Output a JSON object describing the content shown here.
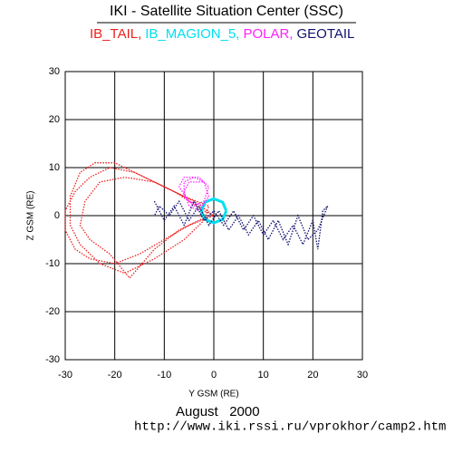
{
  "chart_data": {
    "type": "orbit",
    "title": "IKI - Satellite Situation Center (SSC)",
    "xlabel": "Y GSM (RE)",
    "ylabel": "Z GSM (RE)",
    "date": "August   2000",
    "url": "http://www.iki.rssi.ru/vprokhor/camp2.htm",
    "xlim": [
      -30,
      30
    ],
    "ylim": [
      -30,
      30
    ],
    "xticks": [
      -30,
      -20,
      -10,
      0,
      10,
      20,
      30
    ],
    "yticks": [
      -30,
      -20,
      -10,
      0,
      10,
      20,
      30
    ],
    "grid": true,
    "series": [
      {
        "name": "IB_TAIL,",
        "color": "#ee2020",
        "x": [
          0,
          -4,
          -10,
          -16,
          -21,
          -25,
          -28,
          -30,
          -30,
          -28,
          -25,
          -20,
          -15,
          -10,
          -5,
          0,
          -2,
          -8,
          -14,
          -20,
          -24,
          -27,
          -29,
          -29,
          -27,
          -23,
          -18,
          -12,
          -6,
          -2,
          -1,
          -6,
          -12,
          -18,
          -23,
          -26,
          -27,
          -25,
          -21,
          -17,
          -12,
          -7,
          -1
        ],
        "y": [
          0,
          3,
          6,
          9,
          10,
          8,
          5,
          1,
          -3,
          -7,
          -9,
          -10,
          -8,
          -5,
          -2,
          0,
          1,
          5,
          8,
          11,
          11,
          9,
          4,
          -2,
          -6,
          -10,
          -12,
          -9,
          -5,
          -1,
          2,
          4,
          7,
          8,
          7,
          3,
          -2,
          -5,
          -8,
          -13,
          -7,
          -3,
          0
        ]
      },
      {
        "name": "IB_MAGION_5,",
        "color": "#00e0f0",
        "x": [
          2.5,
          1.8,
          0,
          -1.8,
          -2.5,
          -1.8,
          0,
          1.8,
          2.5
        ],
        "y": [
          1,
          2.8,
          3.5,
          2.8,
          1,
          -0.8,
          -1.5,
          -0.8,
          1
        ]
      },
      {
        "name": "POLAR,",
        "color": "#ff20ff",
        "x": [
          -2,
          -5,
          -7,
          -6,
          -3,
          -1,
          -2,
          -4,
          -6,
          -6,
          -4,
          -2,
          -1,
          -3,
          -5,
          -6,
          -5,
          -2
        ],
        "y": [
          2,
          3,
          6,
          8,
          8,
          6,
          3,
          2,
          4,
          7,
          8,
          7,
          4,
          1,
          2,
          5,
          7,
          7
        ]
      },
      {
        "name": "GEOTAIL",
        "color": "#101070",
        "x": [
          -12,
          -10,
          -8,
          -6,
          -4,
          -2,
          0,
          2,
          4,
          6,
          8,
          10,
          12,
          14,
          16,
          18,
          20,
          21,
          22,
          23,
          21,
          19,
          17,
          15,
          13,
          11,
          9,
          7,
          5,
          3,
          1,
          -1,
          -3,
          -5,
          -7,
          -9,
          -11,
          -12
        ],
        "y": [
          3,
          -1,
          2,
          -2,
          3,
          -1,
          1,
          -2,
          1,
          -3,
          0,
          -4,
          -1,
          -5,
          -2,
          -6,
          -1,
          -7,
          1,
          2,
          -3,
          -5,
          0,
          -6,
          -1,
          -5,
          -1,
          -4,
          0,
          -3,
          1,
          -2,
          2,
          -1,
          3,
          0,
          2,
          0
        ]
      }
    ]
  }
}
